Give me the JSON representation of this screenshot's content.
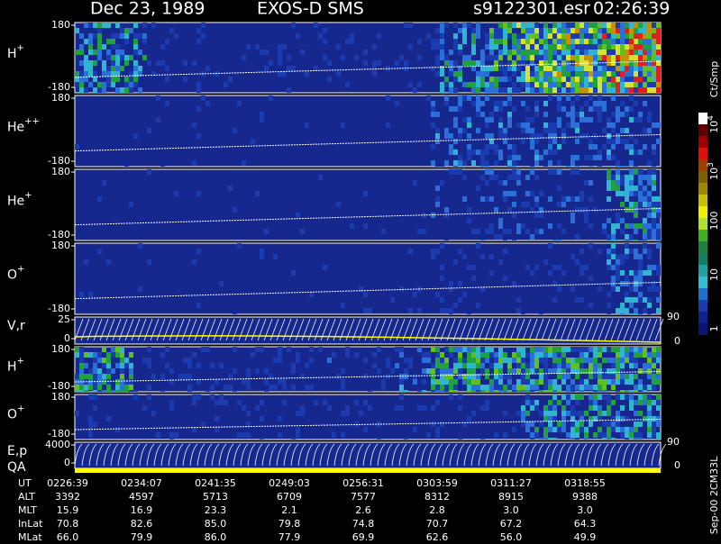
{
  "header": {
    "date": "Dec 23, 1989",
    "instrument": "EXOS-D SMS",
    "file": "s9122301.esr",
    "time": "02:26:39"
  },
  "panels": [
    {
      "label": "H",
      "sup": "+",
      "ticks": [
        "180",
        "-180"
      ]
    },
    {
      "label": "He",
      "sup": "++",
      "ticks": [
        "180",
        "-180"
      ]
    },
    {
      "label": "He",
      "sup": "+",
      "ticks": [
        "180",
        "-180"
      ]
    },
    {
      "label": "O",
      "sup": "+",
      "ticks": [
        "180",
        "-180"
      ]
    },
    {
      "label": "V,r",
      "ticks": [
        "25",
        "0"
      ],
      "right_ticks": [
        "90",
        "0"
      ]
    },
    {
      "label": "H",
      "sup": "+",
      "ticks": [
        "180",
        "-180"
      ]
    },
    {
      "label": "O",
      "sup": "+",
      "ticks": [
        "180",
        "-180"
      ]
    },
    {
      "label": "E,p",
      "ticks": [
        "4000",
        "0"
      ],
      "right_ticks": [
        "90",
        "0"
      ]
    }
  ],
  "qa_label": "QA",
  "colorbar": {
    "unit": "Ct/Smp",
    "labels": [
      {
        "base": "10",
        "exp": "4"
      },
      {
        "base": "10",
        "exp": "3"
      },
      {
        "base": "100"
      },
      {
        "base": "10"
      },
      {
        "base": "1"
      }
    ]
  },
  "footer": {
    "rows": [
      {
        "label": "UT",
        "values": [
          "0226:39",
          "0234:07",
          "0241:35",
          "0249:03",
          "0256:31",
          "0303:59",
          "0311:27",
          "0318:55"
        ]
      },
      {
        "label": "ALT",
        "values": [
          "3392",
          "4597",
          "5713",
          "6709",
          "7577",
          "8312",
          "8915",
          "9388"
        ]
      },
      {
        "label": "MLT",
        "values": [
          "15.9",
          "16.9",
          "23.3",
          "2.1",
          "2.6",
          "2.8",
          "3.0",
          "3.0"
        ]
      },
      {
        "label": "InLat",
        "values": [
          "70.8",
          "82.6",
          "85.0",
          "79.8",
          "74.8",
          "70.7",
          "67.2",
          "64.3"
        ]
      },
      {
        "label": "MLat",
        "values": [
          "66.0",
          "79.9",
          "86.0",
          "77.9",
          "69.9",
          "62.6",
          "56.0",
          "49.9"
        ]
      }
    ]
  },
  "version": "Sep-00 2CM33L"
}
